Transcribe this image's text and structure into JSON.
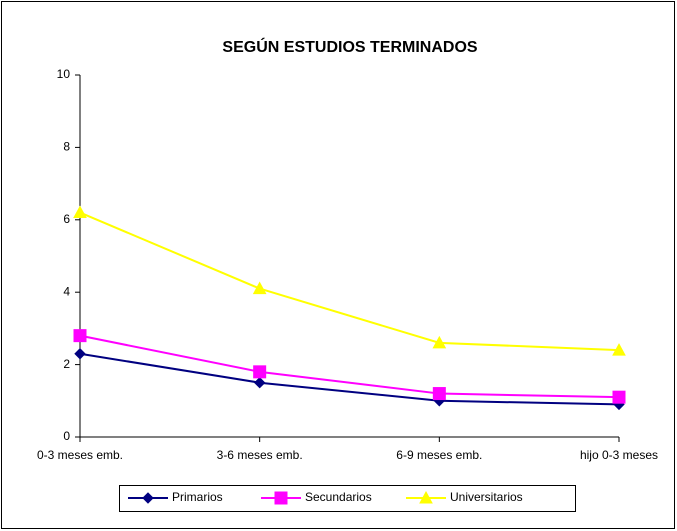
{
  "chart_data": {
    "type": "line",
    "title": "SEGÚN ESTUDIOS TERMINADOS",
    "categories": [
      "0-3 meses emb.",
      "3-6 meses emb.",
      "6-9 meses emb.",
      "hijo 0-3 meses"
    ],
    "series": [
      {
        "name": "Primarios",
        "color": "#000080",
        "marker": "diamond",
        "values": [
          2.3,
          1.5,
          1.0,
          0.9
        ]
      },
      {
        "name": "Secundarios",
        "color": "#ff00ff",
        "marker": "square",
        "values": [
          2.8,
          1.8,
          1.2,
          1.1
        ]
      },
      {
        "name": "Universitarios",
        "color": "#ffff00",
        "marker": "triangle",
        "values": [
          6.2,
          4.1,
          2.6,
          2.4
        ]
      }
    ],
    "ylim": [
      0,
      10
    ],
    "yticks": [
      0,
      2,
      4,
      6,
      8,
      10
    ],
    "grid": false,
    "legend": "bottom"
  }
}
